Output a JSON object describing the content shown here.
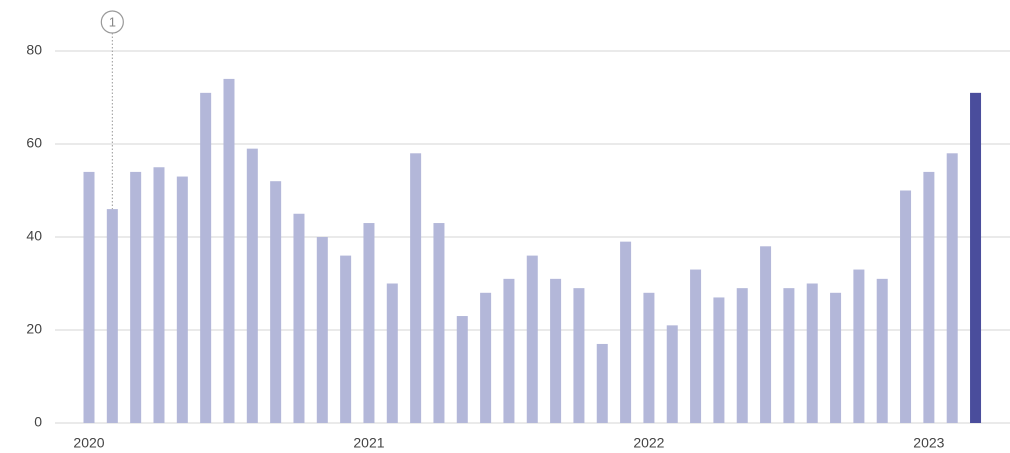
{
  "chart_data": {
    "type": "bar",
    "categories": [
      "2020",
      null,
      null,
      null,
      null,
      null,
      null,
      null,
      null,
      null,
      null,
      null,
      "2021",
      null,
      null,
      null,
      null,
      null,
      null,
      null,
      null,
      null,
      null,
      null,
      "2022",
      null,
      null,
      null,
      null,
      null,
      null,
      null,
      null,
      null,
      null,
      null,
      "2023",
      null,
      null
    ],
    "values": [
      54,
      46,
      54,
      55,
      53,
      71,
      74,
      59,
      52,
      45,
      40,
      36,
      43,
      30,
      58,
      43,
      23,
      28,
      31,
      36,
      31,
      29,
      17,
      39,
      28,
      21,
      33,
      27,
      29,
      38,
      29,
      30,
      28,
      33,
      31,
      50,
      54,
      58,
      71
    ],
    "colors": [
      "#b3b7d9",
      "#b3b7d9",
      "#b3b7d9",
      "#b3b7d9",
      "#b3b7d9",
      "#b3b7d9",
      "#b3b7d9",
      "#b3b7d9",
      "#b3b7d9",
      "#b3b7d9",
      "#b3b7d9",
      "#b3b7d9",
      "#b3b7d9",
      "#b3b7d9",
      "#b3b7d9",
      "#b3b7d9",
      "#b3b7d9",
      "#b3b7d9",
      "#b3b7d9",
      "#b3b7d9",
      "#b3b7d9",
      "#b3b7d9",
      "#b3b7d9",
      "#b3b7d9",
      "#b3b7d9",
      "#b3b7d9",
      "#b3b7d9",
      "#b3b7d9",
      "#b3b7d9",
      "#b3b7d9",
      "#b3b7d9",
      "#b3b7d9",
      "#b3b7d9",
      "#b3b7d9",
      "#b3b7d9",
      "#b3b7d9",
      "#b3b7d9",
      "#b3b7d9",
      "#4a4d9c"
    ],
    "annotations": [
      {
        "label": "1",
        "category_index": 1
      }
    ],
    "ylim": [
      0,
      80
    ],
    "yticks": [
      0,
      20,
      40,
      60,
      80
    ],
    "grid": true
  }
}
